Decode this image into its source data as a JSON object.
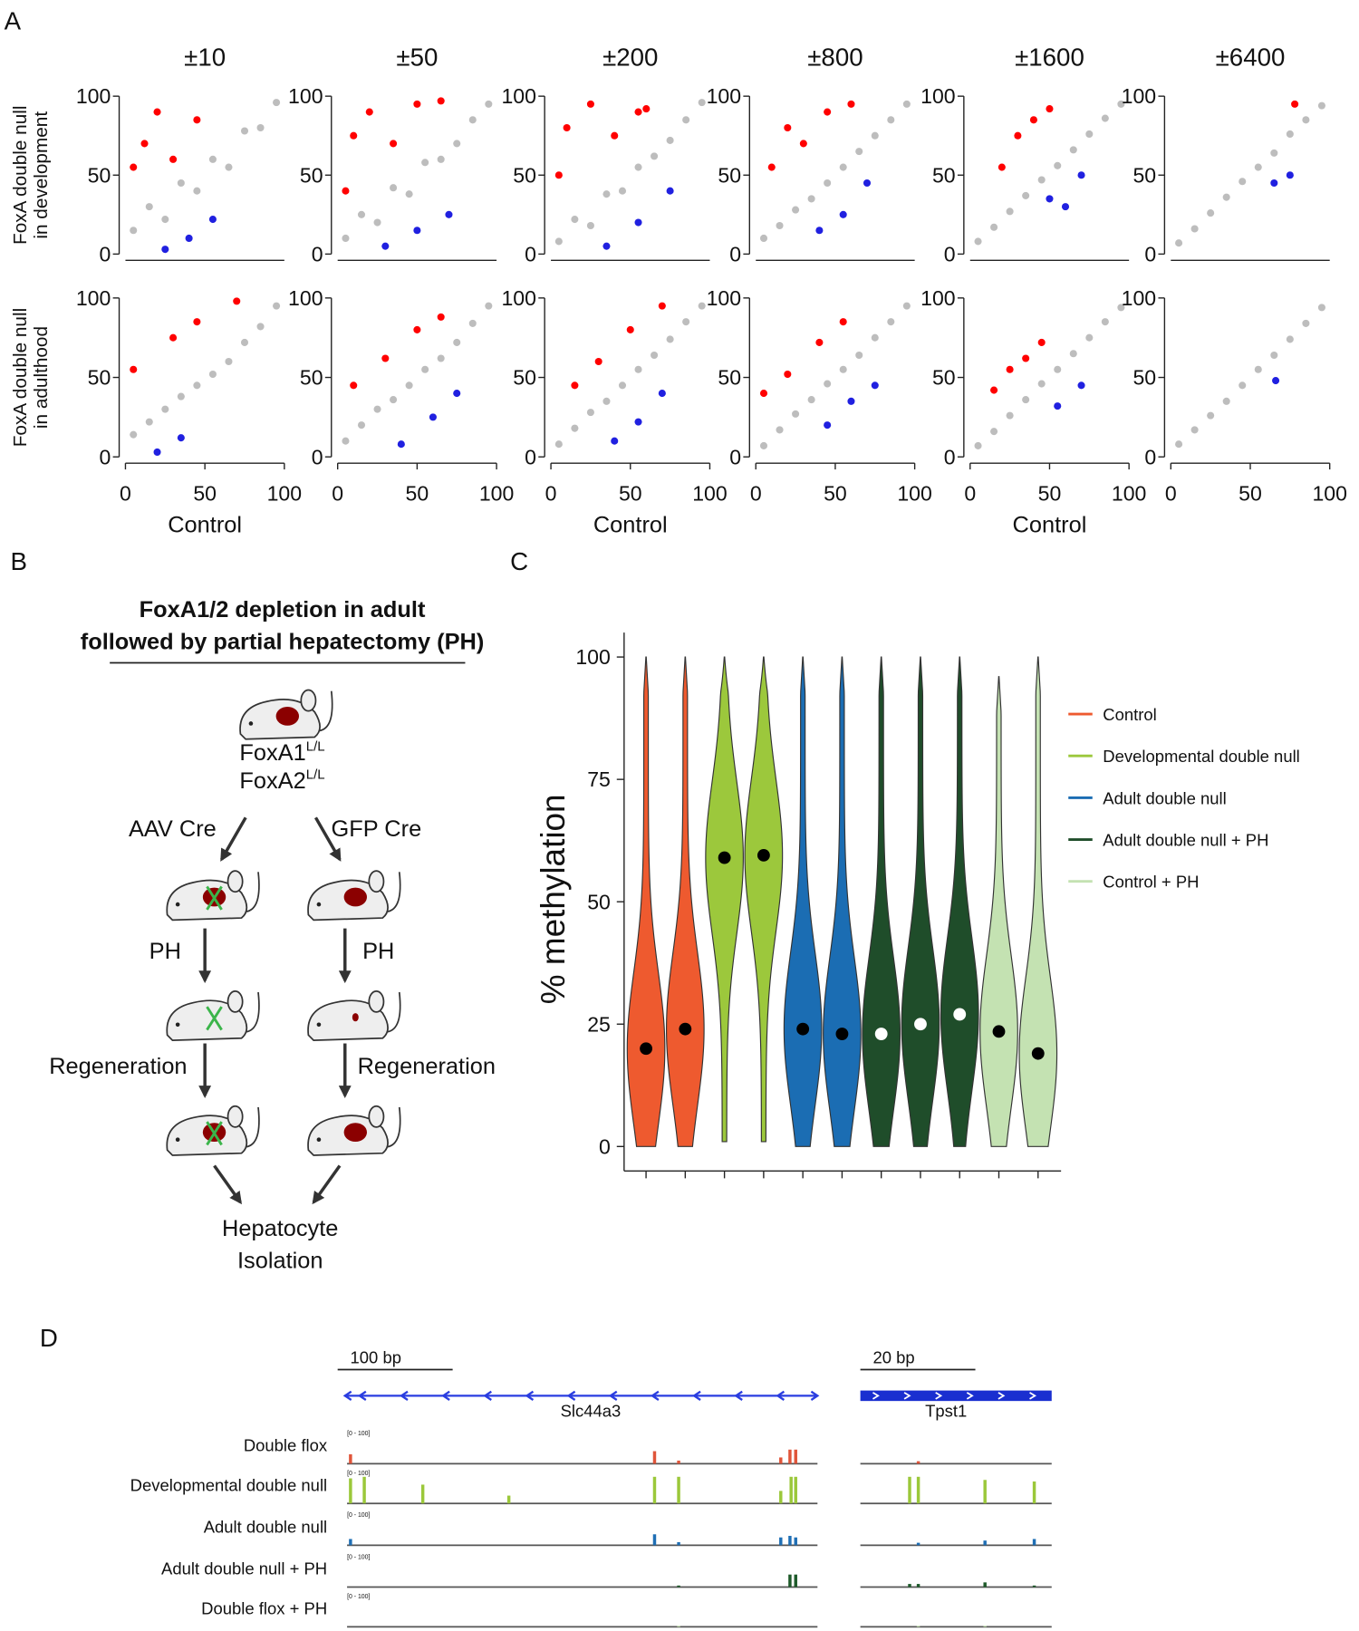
{
  "panels": [
    "A",
    "B",
    "C",
    "D"
  ],
  "diagram": {
    "title": [
      "FoxA1/2 depletion in adult",
      "followed by partial hepatectomy (PH)"
    ],
    "genotype": [
      {
        "text": "FoxA1",
        "sup": "L/L"
      },
      {
        "text": "FoxA2",
        "sup": "L/L"
      }
    ],
    "treatments": [
      "AAV Cre",
      "GFP Cre"
    ],
    "surgery": [
      "PH",
      "PH"
    ],
    "recovery": [
      "Regeneration",
      "Regeneration"
    ],
    "outcome": [
      "Hepatocyte",
      "Isolation"
    ]
  },
  "panel_d": {
    "scale_bars": [
      "100 bp",
      "20 bp"
    ],
    "genes": [
      "Slc44a3",
      "Tpst1"
    ]
  },
  "chart_data": [
    {
      "type": "scatter",
      "title": "±10",
      "ylabel": [
        "FoxA double null",
        "in development"
      ],
      "xlim": [
        0,
        100
      ],
      "ylim": [
        0,
        100
      ],
      "yticks": [
        0,
        50,
        100
      ],
      "series": [
        {
          "color": "#bdbdbd",
          "x": [
            5,
            15,
            25,
            35,
            45,
            55,
            65,
            75,
            85,
            95
          ],
          "values": [
            15,
            30,
            22,
            45,
            40,
            60,
            55,
            78,
            80,
            96
          ]
        },
        {
          "color": "#ff0000",
          "x": [
            5,
            12,
            20,
            30,
            45
          ],
          "values": [
            55,
            70,
            90,
            60,
            85
          ]
        },
        {
          "color": "#2020e0",
          "x": [
            25,
            40,
            55
          ],
          "values": [
            3,
            10,
            22
          ]
        }
      ]
    },
    {
      "type": "scatter",
      "title": "±50",
      "xlim": [
        0,
        100
      ],
      "ylim": [
        0,
        100
      ],
      "yticks": [
        0,
        50,
        100
      ],
      "series": [
        {
          "color": "#bdbdbd",
          "x": [
            5,
            15,
            25,
            35,
            45,
            55,
            65,
            75,
            85,
            95
          ],
          "values": [
            10,
            25,
            20,
            42,
            38,
            58,
            60,
            70,
            85,
            95
          ]
        },
        {
          "color": "#ff0000",
          "x": [
            5,
            10,
            20,
            35,
            50,
            65
          ],
          "values": [
            40,
            75,
            90,
            70,
            95,
            97
          ]
        },
        {
          "color": "#2020e0",
          "x": [
            30,
            50,
            70
          ],
          "values": [
            5,
            15,
            25
          ]
        }
      ]
    },
    {
      "type": "scatter",
      "title": "±200",
      "xlim": [
        0,
        100
      ],
      "ylim": [
        0,
        100
      ],
      "yticks": [
        0,
        50,
        100
      ],
      "series": [
        {
          "color": "#bdbdbd",
          "x": [
            5,
            15,
            25,
            35,
            45,
            55,
            65,
            75,
            85,
            95
          ],
          "values": [
            8,
            22,
            18,
            38,
            40,
            55,
            62,
            72,
            85,
            96
          ]
        },
        {
          "color": "#ff0000",
          "x": [
            5,
            10,
            25,
            40,
            55,
            60
          ],
          "values": [
            50,
            80,
            95,
            75,
            90,
            92
          ]
        },
        {
          "color": "#2020e0",
          "x": [
            35,
            55,
            75
          ],
          "values": [
            5,
            20,
            40
          ]
        }
      ]
    },
    {
      "type": "scatter",
      "title": "±800",
      "xlim": [
        0,
        100
      ],
      "ylim": [
        0,
        100
      ],
      "yticks": [
        0,
        50,
        100
      ],
      "series": [
        {
          "color": "#bdbdbd",
          "x": [
            5,
            15,
            25,
            35,
            45,
            55,
            65,
            75,
            85,
            95
          ],
          "values": [
            10,
            18,
            28,
            35,
            45,
            55,
            65,
            75,
            85,
            95
          ]
        },
        {
          "color": "#ff0000",
          "x": [
            10,
            20,
            30,
            45,
            60
          ],
          "values": [
            55,
            80,
            70,
            90,
            95
          ]
        },
        {
          "color": "#2020e0",
          "x": [
            40,
            55,
            70
          ],
          "values": [
            15,
            25,
            45
          ]
        }
      ]
    },
    {
      "type": "scatter",
      "title": "±1600",
      "xlim": [
        0,
        100
      ],
      "ylim": [
        0,
        100
      ],
      "yticks": [
        0,
        50,
        100
      ],
      "series": [
        {
          "color": "#bdbdbd",
          "x": [
            5,
            15,
            25,
            35,
            45,
            55,
            65,
            75,
            85,
            95
          ],
          "values": [
            8,
            17,
            27,
            37,
            47,
            56,
            66,
            76,
            86,
            95
          ]
        },
        {
          "color": "#ff0000",
          "x": [
            20,
            30,
            40,
            50
          ],
          "values": [
            55,
            75,
            85,
            92
          ]
        },
        {
          "color": "#2020e0",
          "x": [
            50,
            60,
            70
          ],
          "values": [
            35,
            30,
            50
          ]
        }
      ]
    },
    {
      "type": "scatter",
      "title": "±6400",
      "xlim": [
        0,
        100
      ],
      "ylim": [
        0,
        100
      ],
      "yticks": [
        0,
        50,
        100
      ],
      "series": [
        {
          "color": "#bdbdbd",
          "x": [
            5,
            15,
            25,
            35,
            45,
            55,
            65,
            75,
            85,
            95
          ],
          "values": [
            7,
            16,
            26,
            36,
            46,
            55,
            64,
            76,
            85,
            94
          ]
        },
        {
          "color": "#ff0000",
          "x": [
            78
          ],
          "values": [
            95
          ]
        },
        {
          "color": "#2020e0",
          "x": [
            65,
            75
          ],
          "values": [
            45,
            50
          ]
        }
      ]
    },
    {
      "type": "scatter",
      "ylabel": [
        "FoxA double null",
        "in adulthood"
      ],
      "xlabel": "Control",
      "xlim": [
        0,
        100
      ],
      "ylim": [
        0,
        100
      ],
      "xticks": [
        0,
        50,
        100
      ],
      "yticks": [
        0,
        50,
        100
      ],
      "series": [
        {
          "color": "#bdbdbd",
          "x": [
            5,
            15,
            25,
            35,
            45,
            55,
            65,
            75,
            85,
            95
          ],
          "values": [
            14,
            22,
            30,
            38,
            45,
            52,
            60,
            72,
            82,
            95
          ]
        },
        {
          "color": "#ff0000",
          "x": [
            5,
            30,
            45,
            70
          ],
          "values": [
            55,
            75,
            85,
            98
          ]
        },
        {
          "color": "#2020e0",
          "x": [
            20,
            35
          ],
          "values": [
            3,
            12
          ]
        }
      ]
    },
    {
      "type": "scatter",
      "xlim": [
        0,
        100
      ],
      "ylim": [
        0,
        100
      ],
      "xticks": [
        0,
        50,
        100
      ],
      "yticks": [
        0,
        50,
        100
      ],
      "series": [
        {
          "color": "#bdbdbd",
          "x": [
            5,
            15,
            25,
            35,
            45,
            55,
            65,
            75,
            85,
            95
          ],
          "values": [
            10,
            20,
            30,
            36,
            45,
            55,
            62,
            72,
            84,
            95
          ]
        },
        {
          "color": "#ff0000",
          "x": [
            10,
            30,
            50,
            65
          ],
          "values": [
            45,
            62,
            80,
            88
          ]
        },
        {
          "color": "#2020e0",
          "x": [
            40,
            60,
            75
          ],
          "values": [
            8,
            25,
            40
          ]
        }
      ]
    },
    {
      "type": "scatter",
      "xlabel": "Control",
      "xlim": [
        0,
        100
      ],
      "ylim": [
        0,
        100
      ],
      "xticks": [
        0,
        50,
        100
      ],
      "yticks": [
        0,
        50,
        100
      ],
      "series": [
        {
          "color": "#bdbdbd",
          "x": [
            5,
            15,
            25,
            35,
            45,
            55,
            65,
            75,
            85,
            95
          ],
          "values": [
            8,
            18,
            28,
            35,
            45,
            55,
            64,
            74,
            85,
            95
          ]
        },
        {
          "color": "#ff0000",
          "x": [
            15,
            30,
            50,
            70
          ],
          "values": [
            45,
            60,
            80,
            95
          ]
        },
        {
          "color": "#2020e0",
          "x": [
            40,
            55,
            70
          ],
          "values": [
            10,
            22,
            40
          ]
        }
      ]
    },
    {
      "type": "scatter",
      "xlim": [
        0,
        100
      ],
      "ylim": [
        0,
        100
      ],
      "xticks": [
        0,
        50,
        100
      ],
      "yticks": [
        0,
        50,
        100
      ],
      "series": [
        {
          "color": "#bdbdbd",
          "x": [
            5,
            15,
            25,
            35,
            45,
            55,
            65,
            75,
            85,
            95
          ],
          "values": [
            7,
            17,
            27,
            36,
            46,
            55,
            64,
            75,
            85,
            95
          ]
        },
        {
          "color": "#ff0000",
          "x": [
            5,
            20,
            40,
            55
          ],
          "values": [
            40,
            52,
            72,
            85
          ]
        },
        {
          "color": "#2020e0",
          "x": [
            45,
            60,
            75
          ],
          "values": [
            20,
            35,
            45
          ]
        }
      ]
    },
    {
      "type": "scatter",
      "xlabel": "Control",
      "xlim": [
        0,
        100
      ],
      "ylim": [
        0,
        100
      ],
      "xticks": [
        0,
        50,
        100
      ],
      "yticks": [
        0,
        50,
        100
      ],
      "series": [
        {
          "color": "#bdbdbd",
          "x": [
            5,
            15,
            25,
            35,
            45,
            55,
            65,
            75,
            85,
            95
          ],
          "values": [
            7,
            16,
            26,
            36,
            46,
            55,
            65,
            75,
            85,
            94
          ]
        },
        {
          "color": "#ff0000",
          "x": [
            15,
            25,
            35,
            45
          ],
          "values": [
            42,
            55,
            62,
            72
          ]
        },
        {
          "color": "#2020e0",
          "x": [
            55,
            70
          ],
          "values": [
            32,
            45
          ]
        }
      ]
    },
    {
      "type": "scatter",
      "xlim": [
        0,
        100
      ],
      "ylim": [
        0,
        100
      ],
      "xticks": [
        0,
        50,
        100
      ],
      "yticks": [
        0,
        50,
        100
      ],
      "series": [
        {
          "color": "#bdbdbd",
          "x": [
            5,
            15,
            25,
            35,
            45,
            55,
            65,
            75,
            85,
            95
          ],
          "values": [
            8,
            17,
            26,
            35,
            45,
            55,
            64,
            74,
            84,
            94
          ]
        },
        {
          "color": "#2020e0",
          "x": [
            66
          ],
          "values": [
            48
          ]
        }
      ]
    },
    {
      "type": "violin",
      "ylabel": "% methylation",
      "ylim": [
        -5,
        105
      ],
      "yticks": [
        0,
        25,
        50,
        75,
        100
      ],
      "categories": [
        null,
        null,
        null,
        null,
        null,
        null,
        null,
        null,
        null,
        null,
        null
      ],
      "series": [
        {
          "name": "Control",
          "color": "#ee5a2f",
          "dot_color": "#000000",
          "values": [
            20,
            24
          ],
          "ranges": [
            [
              0,
              100
            ],
            [
              0,
              100
            ]
          ]
        },
        {
          "name": "Developmental double null",
          "color": "#9cc83c",
          "dot_color": "#000000",
          "values": [
            59,
            59.5
          ],
          "ranges": [
            [
              1,
              100
            ],
            [
              1,
              100
            ]
          ]
        },
        {
          "name": "Adult double null",
          "color": "#1b6db3",
          "dot_color": "#000000",
          "values": [
            24,
            23
          ],
          "ranges": [
            [
              0,
              100
            ],
            [
              0,
              100
            ]
          ]
        },
        {
          "name": "Adult double null + PH",
          "color": "#1f4d2a",
          "dot_color": "#ffffff",
          "values": [
            23,
            25,
            27
          ],
          "ranges": [
            [
              0,
              100
            ],
            [
              0,
              100
            ],
            [
              0,
              100
            ]
          ]
        },
        {
          "name": "Control + PH",
          "color": "#c4e2b2",
          "dot_color": "#000000",
          "values": [
            23.5,
            19
          ],
          "ranges": [
            [
              0,
              96
            ],
            [
              0,
              100
            ]
          ]
        }
      ]
    },
    {
      "type": "track",
      "title": "Double flox",
      "range_label": "[0 - 100]",
      "color": "#e0553a",
      "xlim": [
        0,
        410
      ],
      "ylim": [
        0,
        100
      ],
      "x": [
        3,
        268,
        289,
        378,
        386,
        391
      ],
      "values": [
        30,
        40,
        10,
        20,
        45,
        45
      ]
    },
    {
      "type": "track",
      "title": "Developmental double null",
      "range_label": "[0 - 100]",
      "color": "#9bc83a",
      "xlim": [
        0,
        410
      ],
      "ylim": [
        0,
        100
      ],
      "x": [
        3,
        15,
        66,
        141,
        268,
        289,
        378,
        387,
        391
      ],
      "values": [
        80,
        85,
        60,
        25,
        85,
        85,
        40,
        85,
        85
      ]
    },
    {
      "type": "track",
      "title": "Adult double null",
      "range_label": "[0 - 100]",
      "color": "#1f6fb5",
      "xlim": [
        0,
        410
      ],
      "ylim": [
        0,
        100
      ],
      "x": [
        3,
        268,
        289,
        378,
        386,
        391
      ],
      "values": [
        20,
        35,
        10,
        25,
        30,
        25
      ]
    },
    {
      "type": "track",
      "title": "Adult double null + PH",
      "range_label": "[0 - 100]",
      "color": "#1e5a2a",
      "xlim": [
        0,
        410
      ],
      "ylim": [
        0,
        100
      ],
      "x": [
        289,
        386,
        391
      ],
      "values": [
        5,
        40,
        40
      ]
    },
    {
      "type": "track",
      "title": "Double flox + PH",
      "range_label": "[0 - 100]",
      "color": "#b9dca0",
      "xlim": [
        0,
        410
      ],
      "ylim": [
        0,
        100
      ],
      "x": [
        289
      ],
      "values": [
        3
      ]
    },
    {
      "type": "track",
      "color": "#e0553a",
      "xlim": [
        0,
        33
      ],
      "ylim": [
        0,
        100
      ],
      "x": [
        10
      ],
      "values": [
        8
      ]
    },
    {
      "type": "track",
      "color": "#9bc83a",
      "xlim": [
        0,
        33
      ],
      "ylim": [
        0,
        100
      ],
      "x": [
        8.5,
        10,
        21.5,
        30
      ],
      "values": [
        85,
        85,
        75,
        70
      ]
    },
    {
      "type": "track",
      "color": "#1f6fb5",
      "xlim": [
        0,
        33
      ],
      "ylim": [
        0,
        100
      ],
      "x": [
        10,
        21.5,
        30
      ],
      "values": [
        8,
        15,
        20
      ]
    },
    {
      "type": "track",
      "color": "#1e5a2a",
      "xlim": [
        0,
        33
      ],
      "ylim": [
        0,
        100
      ],
      "x": [
        8.5,
        10,
        21.5,
        30
      ],
      "values": [
        10,
        10,
        15,
        5
      ]
    },
    {
      "type": "track",
      "color": "#b9dca0",
      "xlim": [
        0,
        33
      ],
      "ylim": [
        0,
        100
      ],
      "x": [
        10,
        21.5
      ],
      "values": [
        3,
        3
      ]
    }
  ]
}
